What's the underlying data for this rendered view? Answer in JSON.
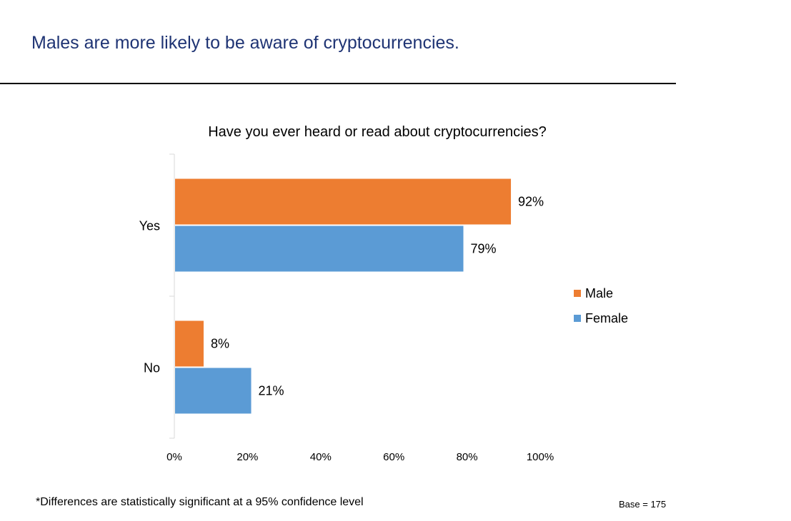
{
  "slide": {
    "headline": "Males are more likely to be aware of cryptocurrencies.",
    "footnote": "*Differences are statistically significant at a 95% confidence level",
    "base": "Base = 175"
  },
  "colors": {
    "male": "#ed7d31",
    "female": "#5b9bd5",
    "headline": "#1f3474"
  },
  "chart_data": {
    "type": "bar",
    "orientation": "horizontal",
    "title": "Have you ever heard or read about cryptocurrencies?",
    "categories": [
      "Yes",
      "No"
    ],
    "series": [
      {
        "name": "Male",
        "values": [
          92,
          8
        ],
        "labels": [
          "92%",
          "8%"
        ]
      },
      {
        "name": "Female",
        "values": [
          79,
          21
        ],
        "labels": [
          "79%",
          "21%"
        ]
      }
    ],
    "xlim": [
      0,
      100
    ],
    "xticks": [
      0,
      20,
      40,
      60,
      80,
      100
    ],
    "xtick_labels": [
      "0%",
      "20%",
      "40%",
      "60%",
      "80%",
      "100%"
    ],
    "grid": false,
    "legend_position": "right"
  }
}
